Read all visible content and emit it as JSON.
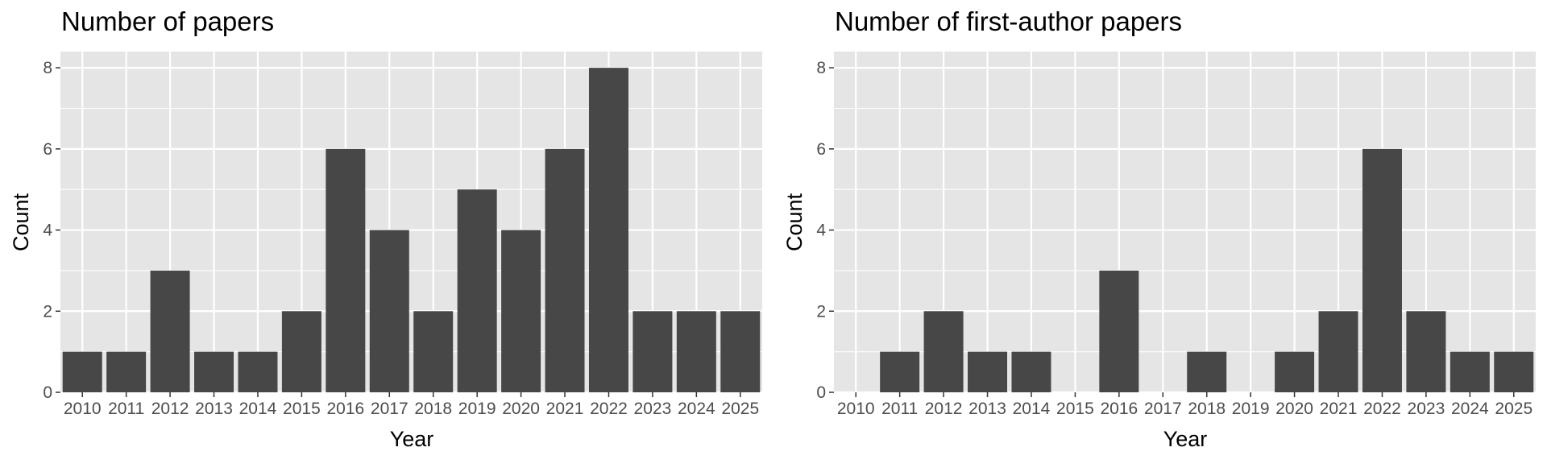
{
  "chart_data": [
    {
      "type": "bar",
      "title": "Number of papers",
      "xlabel": "Year",
      "ylabel": "Count",
      "categories": [
        "2010",
        "2011",
        "2012",
        "2013",
        "2014",
        "2015",
        "2016",
        "2017",
        "2018",
        "2019",
        "2020",
        "2021",
        "2022",
        "2023",
        "2024",
        "2025"
      ],
      "values": [
        1,
        1,
        3,
        1,
        1,
        2,
        6,
        4,
        2,
        5,
        4,
        6,
        8,
        2,
        2,
        2
      ],
      "ylim": [
        0,
        8.4
      ],
      "yticks": [
        0,
        2,
        4,
        6,
        8
      ],
      "grid": true,
      "legend": "none",
      "colors": {
        "bar": "#474747",
        "panel": "#e5e5e5",
        "grid": "#ffffff"
      }
    },
    {
      "type": "bar",
      "title": "Number of first-author papers",
      "xlabel": "Year",
      "ylabel": "Count",
      "categories": [
        "2010",
        "2011",
        "2012",
        "2013",
        "2014",
        "2015",
        "2016",
        "2017",
        "2018",
        "2019",
        "2020",
        "2021",
        "2022",
        "2023",
        "2024",
        "2025"
      ],
      "values": [
        0,
        1,
        2,
        1,
        1,
        0,
        3,
        0,
        1,
        0,
        1,
        2,
        6,
        2,
        1,
        1
      ],
      "ylim": [
        0,
        8.4
      ],
      "yticks": [
        0,
        2,
        4,
        6,
        8
      ],
      "grid": true,
      "legend": "none",
      "colors": {
        "bar": "#474747",
        "panel": "#e5e5e5",
        "grid": "#ffffff"
      }
    }
  ]
}
